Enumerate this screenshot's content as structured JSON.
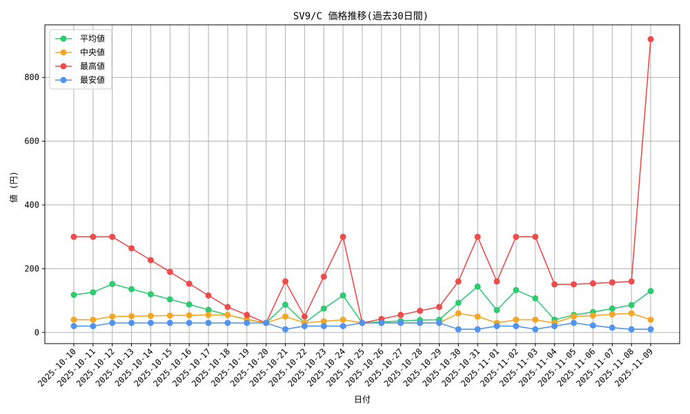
{
  "chart_data": {
    "type": "line",
    "title": "SV9/C 価格推移(過去30日間)",
    "xlabel": "日付",
    "ylabel": "値 (円)",
    "ylim": [
      -35,
      965
    ],
    "yticks": [
      0,
      200,
      400,
      600,
      800
    ],
    "grid": true,
    "legend_position": "top-left",
    "categories": [
      "2025-10-10",
      "2025-10-11",
      "2025-10-12",
      "2025-10-13",
      "2025-10-14",
      "2025-10-15",
      "2025-10-16",
      "2025-10-17",
      "2025-10-18",
      "2025-10-19",
      "2025-10-20",
      "2025-10-21",
      "2025-10-22",
      "2025-10-23",
      "2025-10-24",
      "2025-10-25",
      "2025-10-26",
      "2025-10-27",
      "2025-10-28",
      "2025-10-29",
      "2025-10-30",
      "2025-10-31",
      "2025-11-01",
      "2025-11-02",
      "2025-11-03",
      "2025-11-04",
      "2025-11-05",
      "2025-11-06",
      "2025-11-07",
      "2025-11-08",
      "2025-11-09"
    ],
    "series": [
      {
        "name": "平均値",
        "color": "#2ecc71",
        "values": [
          118,
          126,
          152,
          136,
          120,
          104,
          88,
          71,
          55,
          41,
          30,
          87,
          30,
          75,
          116,
          30,
          33,
          36,
          39,
          40,
          93,
          144,
          70,
          133,
          107,
          40,
          55,
          64,
          75,
          86,
          130
        ]
      },
      {
        "name": "中央値",
        "color": "#f5a623",
        "values": [
          40,
          40,
          50,
          51,
          52,
          53,
          54,
          55,
          55,
          40,
          30,
          50,
          30,
          35,
          40,
          30,
          30,
          30,
          30,
          30,
          60,
          50,
          30,
          40,
          40,
          30,
          50,
          53,
          57,
          60,
          40
        ]
      },
      {
        "name": "最高値",
        "color": "#ef4b4b",
        "values": [
          300,
          300,
          300,
          264,
          227,
          190,
          153,
          116,
          80,
          55,
          30,
          160,
          50,
          175,
          300,
          30,
          42,
          55,
          68,
          80,
          160,
          300,
          160,
          300,
          300,
          151,
          151,
          154,
          157,
          160,
          920
        ]
      },
      {
        "name": "最安値",
        "color": "#4f94f0",
        "values": [
          20,
          20,
          30,
          30,
          30,
          30,
          30,
          30,
          30,
          30,
          30,
          10,
          20,
          20,
          20,
          30,
          30,
          30,
          30,
          30,
          10,
          10,
          20,
          20,
          10,
          20,
          30,
          22,
          15,
          10,
          10
        ]
      }
    ]
  }
}
